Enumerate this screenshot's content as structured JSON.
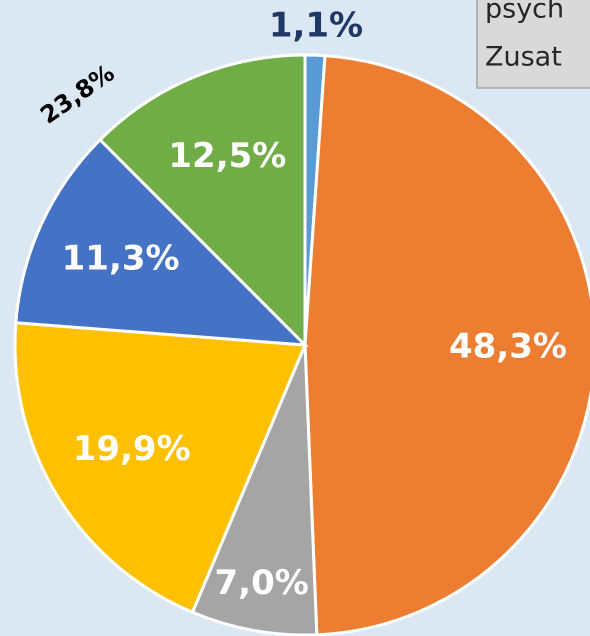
{
  "chart_data": {
    "type": "pie",
    "values": [
      1.1,
      48.3,
      7.0,
      19.9,
      11.3,
      12.5
    ],
    "value_labels": [
      "1,1%",
      "48,3%",
      "7,0%",
      "19,9%",
      "11,3%",
      "12,5%"
    ],
    "colors": [
      "#5b9bd5",
      "#ed7d31",
      "#a5a5a5",
      "#ffc000",
      "#4472c4",
      "#70ad47"
    ],
    "annotation": "23,8%",
    "textbox": [
      "psych",
      "Zusat"
    ]
  }
}
